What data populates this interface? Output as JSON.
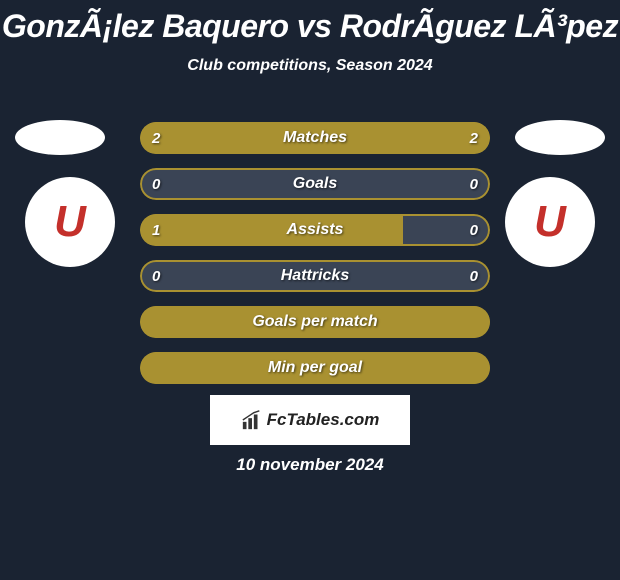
{
  "title": "GonzÃ¡lez Baquero vs RodrÃ­guez LÃ³pez",
  "subtitle": "Club competitions, Season 2024",
  "date": "10 november 2024",
  "logo_text": "FcTables.com",
  "background_color": "#1a2332",
  "bar_color": "#a99131",
  "empty_color": "#3a4455",
  "text_color": "#ffffff",
  "badge_letter": "U",
  "bars": [
    {
      "label": "Matches",
      "left_val": "2",
      "right_val": "2",
      "left_pct": 50,
      "right_pct": 50,
      "show_vals": true
    },
    {
      "label": "Goals",
      "left_val": "0",
      "right_val": "0",
      "left_pct": 0,
      "right_pct": 0,
      "show_vals": true
    },
    {
      "label": "Assists",
      "left_val": "1",
      "right_val": "0",
      "left_pct": 75,
      "right_pct": 0,
      "show_vals": true
    },
    {
      "label": "Hattricks",
      "left_val": "0",
      "right_val": "0",
      "left_pct": 0,
      "right_pct": 0,
      "show_vals": true
    },
    {
      "label": "Goals per match",
      "left_val": "",
      "right_val": "",
      "left_pct": 100,
      "right_pct": 0,
      "show_vals": false
    },
    {
      "label": "Min per goal",
      "left_val": "",
      "right_val": "",
      "left_pct": 100,
      "right_pct": 0,
      "show_vals": false
    }
  ]
}
